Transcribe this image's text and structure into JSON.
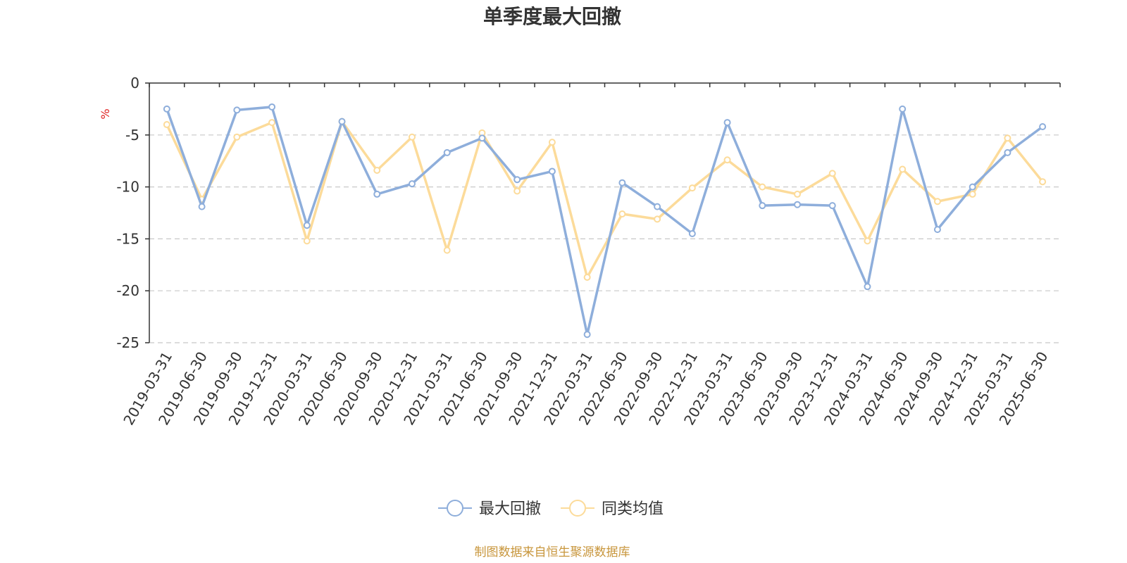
{
  "chart_data": {
    "type": "line",
    "title": "单季度最大回撤",
    "ylabel": "%",
    "ylim": [
      -25,
      0
    ],
    "yticks": [
      0,
      -5,
      -10,
      -15,
      -20,
      -25
    ],
    "grid": true,
    "legend_position": "bottom",
    "categories": [
      "2019-03-31",
      "2019-06-30",
      "2019-09-30",
      "2019-12-31",
      "2020-03-31",
      "2020-06-30",
      "2020-09-30",
      "2020-12-31",
      "2021-03-31",
      "2021-06-30",
      "2021-09-30",
      "2021-12-31",
      "2022-03-31",
      "2022-06-30",
      "2022-09-30",
      "2022-12-31",
      "2023-03-31",
      "2023-06-30",
      "2023-09-30",
      "2023-12-31",
      "2024-03-31",
      "2024-06-30",
      "2024-09-30",
      "2024-12-31",
      "2025-03-31",
      "2025-06-30"
    ],
    "series": [
      {
        "name": "最大回撤",
        "color": "#8eaedb",
        "values": [
          -2.5,
          -11.9,
          -2.6,
          -2.3,
          -13.7,
          -3.7,
          -10.7,
          -9.7,
          -6.7,
          -5.3,
          -9.3,
          -8.5,
          -24.2,
          -9.6,
          -11.9,
          -14.5,
          -3.8,
          -11.8,
          -11.7,
          -11.8,
          -19.6,
          -2.5,
          -14.1,
          -10.0,
          -6.7,
          -4.2
        ]
      },
      {
        "name": "同类均值",
        "color": "#fcdb9a",
        "values": [
          -4.0,
          -11.2,
          -5.2,
          -3.8,
          -15.2,
          -3.7,
          -8.4,
          -5.2,
          -16.1,
          -4.8,
          -10.4,
          -5.7,
          -18.7,
          -12.6,
          -13.1,
          -10.1,
          -7.4,
          -10.0,
          -10.7,
          -8.7,
          -15.2,
          -8.3,
          -11.4,
          -10.7,
          -5.3,
          -9.5
        ]
      }
    ],
    "source_text": "制图数据来自恒生聚源数据库",
    "source_color": "#c8963c",
    "unit_color": "#e02020"
  }
}
